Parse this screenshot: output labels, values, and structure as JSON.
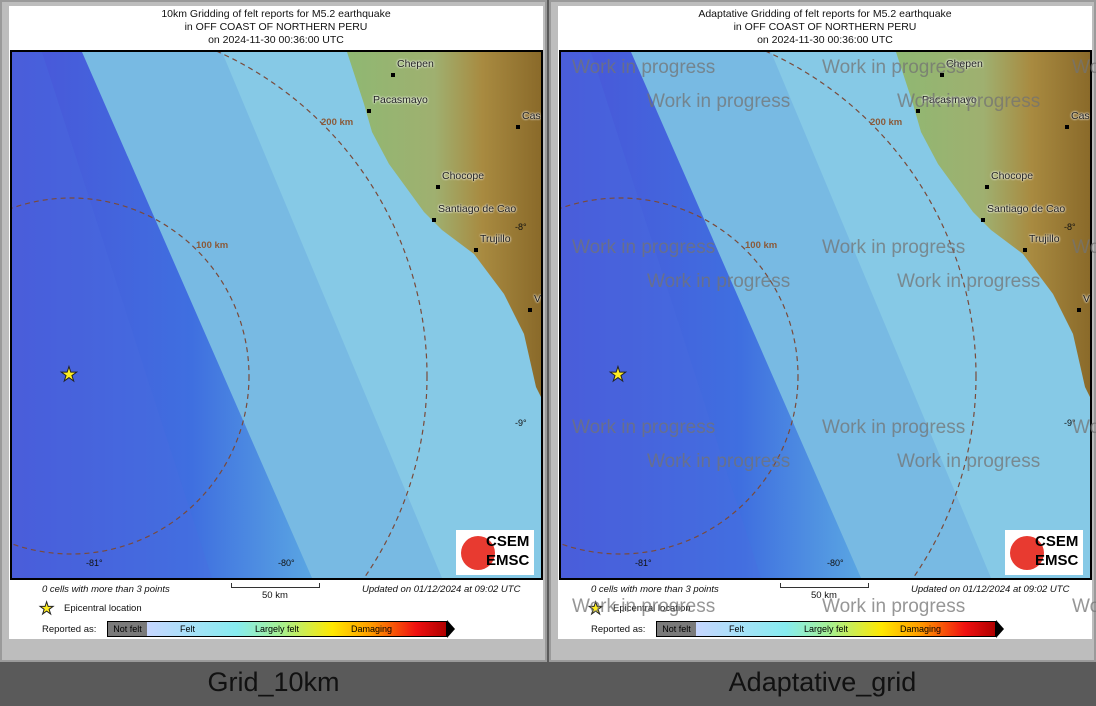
{
  "panels": [
    {
      "title_line1": "10km Gridding of felt reports for M5.2 earthquake",
      "title_line2": "in OFF COAST OF NORTHERN PERU",
      "title_line3": "on  2024-11-30 00:36:00 UTC",
      "caption": "Grid_10km",
      "watermark": ""
    },
    {
      "title_line1": "Adaptative Gridding of felt reports for M5.2 earthquake",
      "title_line2": "in OFF COAST OF NORTHERN PERU",
      "title_line3": "on  2024-11-30 00:36:00 UTC",
      "caption": "Adaptative_grid",
      "watermark": "Work in progress"
    }
  ],
  "map": {
    "cities": [
      "Chepen",
      "Pacasmayo",
      "Cas",
      "Chocope",
      "Santiago de Cao",
      "Trujillo",
      "V"
    ],
    "distance_rings": [
      "100 km",
      "200 km"
    ],
    "lat_ticks": [
      "-8°",
      "-9°"
    ],
    "lon_ticks": [
      "-81°",
      "-80°"
    ],
    "logo_top": "CSEM",
    "logo_bottom": "EMSC"
  },
  "footer": {
    "cells_note": "0 cells with more than 3 points",
    "scale_label": "50 km",
    "updated": "Updated on 01/12/2024 at 09:02 UTC",
    "epicenter_label": "Epicentral location",
    "reported_as": "Reported as:",
    "legend": [
      "Not felt",
      "Felt",
      "Largely felt",
      "Damaging"
    ]
  },
  "colors": {
    "ocean": "#86c9e6",
    "trench": "#3a4fd8",
    "land_low": "#8fb872",
    "land_high": "#8a6a2a",
    "ring": "#7a4a3a"
  }
}
